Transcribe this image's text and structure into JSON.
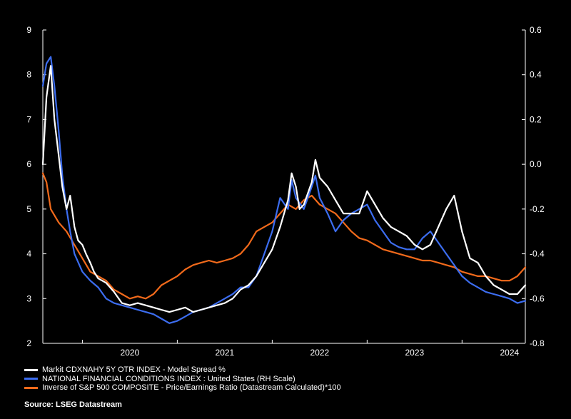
{
  "chart_data": {
    "type": "line",
    "source": "Source: LSEG Datastream",
    "x_axis": {
      "ticks": [
        "2020",
        "2021",
        "2022",
        "2023",
        "2024"
      ],
      "range": [
        "2019-08",
        "2024-09"
      ]
    },
    "y_left": {
      "range": [
        2,
        9
      ],
      "ticks": [
        "2",
        "3",
        "4",
        "5",
        "6",
        "7",
        "8",
        "9"
      ]
    },
    "y_right": {
      "range": [
        -0.8,
        0.6
      ],
      "ticks": [
        "-0.8",
        "-0.6",
        "-0.4",
        "-0.2",
        "0.0",
        "0.2",
        "0.4",
        "0.6"
      ]
    },
    "grid": false,
    "legend_position": "bottom",
    "series": [
      {
        "name": "Markit CDXNAHY 5Y OTR INDEX - Model Spread %",
        "color": "#ffffff",
        "axis": "left",
        "points": [
          [
            "2019-08",
            6.0
          ],
          [
            "2019-08-15",
            7.5
          ],
          [
            "2019-09",
            8.2
          ],
          [
            "2019-09-15",
            7.0
          ],
          [
            "2019-10",
            6.2
          ],
          [
            "2019-10-15",
            5.5
          ],
          [
            "2019-11",
            5.0
          ],
          [
            "2019-11-15",
            5.3
          ],
          [
            "2019-12",
            4.6
          ],
          [
            "2019-12-15",
            4.3
          ],
          [
            "2020-01",
            4.2
          ],
          [
            "2020-01-15",
            4.0
          ],
          [
            "2020-02",
            3.8
          ],
          [
            "2020-02-15",
            3.6
          ],
          [
            "2020-03",
            3.45
          ],
          [
            "2020-04",
            3.35
          ],
          [
            "2020-05",
            3.15
          ],
          [
            "2020-06",
            2.9
          ],
          [
            "2020-07",
            2.85
          ],
          [
            "2020-08",
            2.9
          ],
          [
            "2020-09",
            2.85
          ],
          [
            "2020-10",
            2.8
          ],
          [
            "2020-11",
            2.75
          ],
          [
            "2020-12",
            2.7
          ],
          [
            "2021-01",
            2.75
          ],
          [
            "2021-02",
            2.8
          ],
          [
            "2021-03",
            2.7
          ],
          [
            "2021-04",
            2.75
          ],
          [
            "2021-05",
            2.8
          ],
          [
            "2021-06",
            2.85
          ],
          [
            "2021-07",
            2.9
          ],
          [
            "2021-08",
            3.0
          ],
          [
            "2021-09",
            3.2
          ],
          [
            "2021-10",
            3.3
          ],
          [
            "2021-11",
            3.5
          ],
          [
            "2021-12",
            3.8
          ],
          [
            "2022-01",
            4.1
          ],
          [
            "2022-02",
            4.6
          ],
          [
            "2022-03",
            5.2
          ],
          [
            "2022-03-15",
            5.8
          ],
          [
            "2022-04",
            5.5
          ],
          [
            "2022-04-15",
            5.0
          ],
          [
            "2022-05",
            5.1
          ],
          [
            "2022-06",
            5.6
          ],
          [
            "2022-06-15",
            6.1
          ],
          [
            "2022-07",
            5.7
          ],
          [
            "2022-08",
            5.5
          ],
          [
            "2022-09",
            5.2
          ],
          [
            "2022-10",
            4.9
          ],
          [
            "2022-11",
            4.9
          ],
          [
            "2022-12",
            4.9
          ],
          [
            "2023-01",
            5.4
          ],
          [
            "2023-02",
            5.1
          ],
          [
            "2023-03",
            4.8
          ],
          [
            "2023-04",
            4.6
          ],
          [
            "2023-05",
            4.5
          ],
          [
            "2023-06",
            4.4
          ],
          [
            "2023-07",
            4.2
          ],
          [
            "2023-08",
            4.1
          ],
          [
            "2023-09",
            4.2
          ],
          [
            "2023-10",
            4.6
          ],
          [
            "2023-11",
            5.0
          ],
          [
            "2023-12",
            5.3
          ],
          [
            "2024-01",
            4.5
          ],
          [
            "2024-02",
            3.9
          ],
          [
            "2024-03",
            3.8
          ],
          [
            "2024-04",
            3.5
          ],
          [
            "2024-05",
            3.3
          ],
          [
            "2024-06",
            3.2
          ],
          [
            "2024-07",
            3.1
          ],
          [
            "2024-08",
            3.1
          ],
          [
            "2024-09",
            3.3
          ]
        ]
      },
      {
        "name": "NATIONAL FINANCIAL CONDITIONS INDEX : United States (RH Scale)",
        "color": "#3c6df0",
        "axis": "right",
        "points": [
          [
            "2019-08",
            0.35
          ],
          [
            "2019-08-15",
            0.45
          ],
          [
            "2019-09",
            0.48
          ],
          [
            "2019-09-15",
            0.35
          ],
          [
            "2019-10",
            0.15
          ],
          [
            "2019-10-15",
            -0.05
          ],
          [
            "2019-11",
            -0.2
          ],
          [
            "2019-11-15",
            -0.3
          ],
          [
            "2019-12",
            -0.4
          ],
          [
            "2020-01",
            -0.48
          ],
          [
            "2020-02",
            -0.52
          ],
          [
            "2020-03",
            -0.55
          ],
          [
            "2020-04",
            -0.6
          ],
          [
            "2020-05",
            -0.62
          ],
          [
            "2020-06",
            -0.63
          ],
          [
            "2020-07",
            -0.64
          ],
          [
            "2020-08",
            -0.65
          ],
          [
            "2020-09",
            -0.66
          ],
          [
            "2020-10",
            -0.67
          ],
          [
            "2020-11",
            -0.69
          ],
          [
            "2020-12",
            -0.71
          ],
          [
            "2021-01",
            -0.7
          ],
          [
            "2021-02",
            -0.68
          ],
          [
            "2021-03",
            -0.66
          ],
          [
            "2021-04",
            -0.65
          ],
          [
            "2021-05",
            -0.64
          ],
          [
            "2021-06",
            -0.62
          ],
          [
            "2021-07",
            -0.6
          ],
          [
            "2021-08",
            -0.58
          ],
          [
            "2021-09",
            -0.55
          ],
          [
            "2021-10",
            -0.55
          ],
          [
            "2021-11",
            -0.5
          ],
          [
            "2021-12",
            -0.4
          ],
          [
            "2022-01",
            -0.3
          ],
          [
            "2022-02",
            -0.15
          ],
          [
            "2022-03",
            -0.2
          ],
          [
            "2022-03-15",
            -0.07
          ],
          [
            "2022-04",
            -0.15
          ],
          [
            "2022-05",
            -0.2
          ],
          [
            "2022-06",
            -0.1
          ],
          [
            "2022-06-15",
            -0.05
          ],
          [
            "2022-07",
            -0.15
          ],
          [
            "2022-08",
            -0.22
          ],
          [
            "2022-09",
            -0.3
          ],
          [
            "2022-10",
            -0.25
          ],
          [
            "2022-11",
            -0.22
          ],
          [
            "2022-12",
            -0.2
          ],
          [
            "2023-01",
            -0.18
          ],
          [
            "2023-02",
            -0.25
          ],
          [
            "2023-03",
            -0.3
          ],
          [
            "2023-04",
            -0.35
          ],
          [
            "2023-05",
            -0.37
          ],
          [
            "2023-06",
            -0.38
          ],
          [
            "2023-07",
            -0.38
          ],
          [
            "2023-08",
            -0.33
          ],
          [
            "2023-09",
            -0.3
          ],
          [
            "2023-10",
            -0.35
          ],
          [
            "2023-11",
            -0.4
          ],
          [
            "2023-12",
            -0.45
          ],
          [
            "2024-01",
            -0.5
          ],
          [
            "2024-02",
            -0.53
          ],
          [
            "2024-03",
            -0.55
          ],
          [
            "2024-04",
            -0.57
          ],
          [
            "2024-05",
            -0.58
          ],
          [
            "2024-06",
            -0.59
          ],
          [
            "2024-07",
            -0.6
          ],
          [
            "2024-08",
            -0.62
          ],
          [
            "2024-09",
            -0.61
          ]
        ]
      },
      {
        "name": "Inverse of S&P 500 COMPOSITE - Price/Earnings Ratio (Datastream Calculated)*100",
        "color": "#f26a1b",
        "axis": "left",
        "points": [
          [
            "2019-08",
            5.8
          ],
          [
            "2019-08-15",
            5.6
          ],
          [
            "2019-09",
            5.0
          ],
          [
            "2019-10",
            4.7
          ],
          [
            "2019-11",
            4.5
          ],
          [
            "2019-12",
            4.2
          ],
          [
            "2020-01",
            3.9
          ],
          [
            "2020-02",
            3.6
          ],
          [
            "2020-03",
            3.5
          ],
          [
            "2020-04",
            3.4
          ],
          [
            "2020-05",
            3.2
          ],
          [
            "2020-06",
            3.1
          ],
          [
            "2020-07",
            3.0
          ],
          [
            "2020-08",
            3.05
          ],
          [
            "2020-09",
            3.0
          ],
          [
            "2020-10",
            3.1
          ],
          [
            "2020-11",
            3.3
          ],
          [
            "2020-12",
            3.4
          ],
          [
            "2021-01",
            3.5
          ],
          [
            "2021-02",
            3.65
          ],
          [
            "2021-03",
            3.75
          ],
          [
            "2021-04",
            3.8
          ],
          [
            "2021-05",
            3.85
          ],
          [
            "2021-06",
            3.8
          ],
          [
            "2021-07",
            3.85
          ],
          [
            "2021-08",
            3.9
          ],
          [
            "2021-09",
            4.0
          ],
          [
            "2021-10",
            4.2
          ],
          [
            "2021-11",
            4.5
          ],
          [
            "2021-12",
            4.6
          ],
          [
            "2022-01",
            4.7
          ],
          [
            "2022-02",
            4.9
          ],
          [
            "2022-03",
            5.1
          ],
          [
            "2022-04",
            5.0
          ],
          [
            "2022-05",
            5.2
          ],
          [
            "2022-06",
            5.3
          ],
          [
            "2022-07",
            5.1
          ],
          [
            "2022-08",
            5.0
          ],
          [
            "2022-09",
            4.9
          ],
          [
            "2022-10",
            4.7
          ],
          [
            "2022-11",
            4.5
          ],
          [
            "2022-12",
            4.35
          ],
          [
            "2023-01",
            4.3
          ],
          [
            "2023-02",
            4.2
          ],
          [
            "2023-03",
            4.1
          ],
          [
            "2023-04",
            4.05
          ],
          [
            "2023-05",
            4.0
          ],
          [
            "2023-06",
            3.95
          ],
          [
            "2023-07",
            3.9
          ],
          [
            "2023-08",
            3.85
          ],
          [
            "2023-09",
            3.85
          ],
          [
            "2023-10",
            3.8
          ],
          [
            "2023-11",
            3.75
          ],
          [
            "2023-12",
            3.7
          ],
          [
            "2024-01",
            3.6
          ],
          [
            "2024-02",
            3.55
          ],
          [
            "2024-03",
            3.5
          ],
          [
            "2024-04",
            3.5
          ],
          [
            "2024-05",
            3.45
          ],
          [
            "2024-06",
            3.4
          ],
          [
            "2024-07",
            3.4
          ],
          [
            "2024-08",
            3.5
          ],
          [
            "2024-09",
            3.7
          ]
        ]
      }
    ]
  }
}
